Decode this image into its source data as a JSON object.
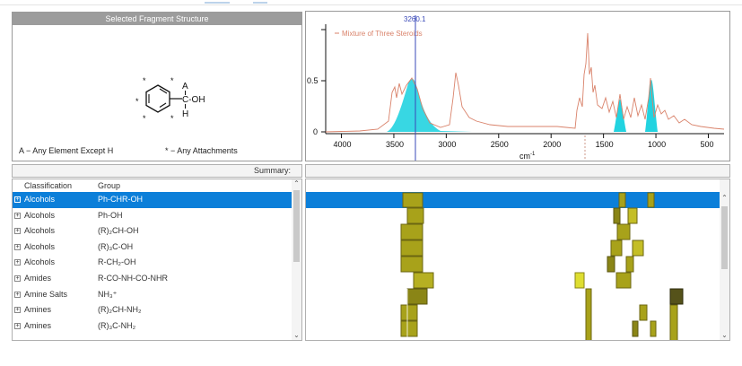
{
  "fragment_panel": {
    "title": "Selected Fragment Structure",
    "atom_a": "A",
    "atom_c_oh": "C-OH",
    "atom_h": "H",
    "legend_a": "A − Any Element Except H",
    "legend_star": "* − Any Attachments"
  },
  "spectrum": {
    "cursor_value": "3260.1",
    "series_name": "Mixture of Three Steroids",
    "y_ticks": [
      "0.5",
      "0"
    ],
    "x_ticks": [
      "4000",
      "3500",
      "3000",
      "2500",
      "2000",
      "1500",
      "1000",
      "500"
    ],
    "x_label": "cm",
    "x_label_sup": "-1",
    "line_color": "#d9826a",
    "fill_color": "#22d3e0",
    "cursor_color": "#3a49b8"
  },
  "summary": {
    "label": "Summary:"
  },
  "table": {
    "columns": [
      "Classification",
      "Group"
    ],
    "rows": [
      {
        "classification": "Alcohols",
        "group": "Ph-CHR-OH",
        "selected": true
      },
      {
        "classification": "Alcohols",
        "group": "Ph-OH"
      },
      {
        "classification": "Alcohols",
        "group": "(R)₂CH-OH"
      },
      {
        "classification": "Alcohols",
        "group": "(R)₃C-OH"
      },
      {
        "classification": "Alcohols",
        "group": "R-CH₂-OH"
      },
      {
        "classification": "Amides",
        "group": "R-CO-NH-CO-NHR"
      },
      {
        "classification": "Amine Salts",
        "group": "NH₃⁺"
      },
      {
        "classification": "Amines",
        "group": "(R)₂CH-NH₂"
      },
      {
        "classification": "Amines",
        "group": "(R)₃C-NH₂"
      }
    ]
  },
  "colors": {
    "selection": "#0c7fd9",
    "heat_olive": "#a8a21a",
    "heat_yellow": "#dede30",
    "heat_dark": "#55521a"
  }
}
